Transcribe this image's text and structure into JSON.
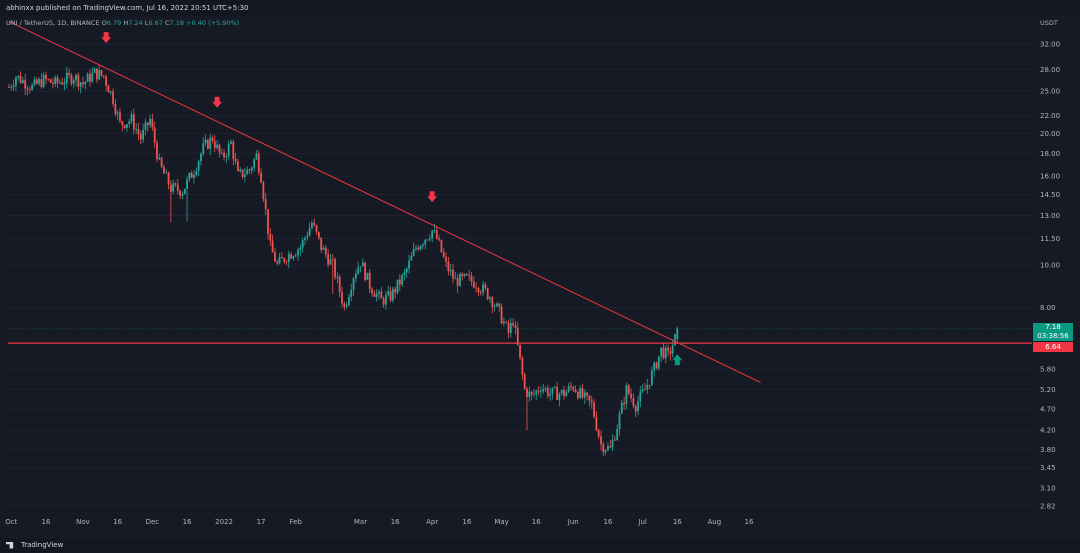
{
  "header": {
    "published_text": "abhinxx published on TradingView.com, Jul 16, 2022 20:51 UTC+5:30"
  },
  "legend": {
    "symbol": "UNI / TetherUS, 1D, BINANCE",
    "open_label": "O",
    "open": "6.79",
    "high_label": "H",
    "high": "7.24",
    "low_label": "L",
    "low": "6.67",
    "close_label": "C",
    "close": "7.18",
    "change": "+0.40 (+5.90%)"
  },
  "price_axis": {
    "unit": "USDT",
    "ticks": [
      "32.00",
      "28.00",
      "25.00",
      "22.00",
      "20.00",
      "18.00",
      "16.00",
      "14.50",
      "13.00",
      "11.50",
      "10.00",
      "8.00",
      "5.80",
      "5.20",
      "4.70",
      "4.20",
      "3.80",
      "3.45",
      "3.10",
      "2.82"
    ]
  },
  "time_axis": {
    "ticks": [
      "Oct",
      "16",
      "Nov",
      "16",
      "Dec",
      "16",
      "2022",
      "17",
      "Feb",
      "Mar",
      "16",
      "Apr",
      "16",
      "May",
      "16",
      "Jun",
      "16",
      "Jul",
      "16",
      "Aug",
      "16"
    ]
  },
  "price_tags": {
    "last_price": "7.18",
    "countdown": "03:38:56",
    "level": "6.64"
  },
  "footer": {
    "brand": "TradingView"
  },
  "colors": {
    "background": "#161a25",
    "up": "#26a69a",
    "down": "#ef5350",
    "trendline": "#f23645",
    "arrow_down": "#f23645",
    "arrow_up": "#089981"
  },
  "chart_data": {
    "type": "candlestick",
    "symbol": "UNI / TetherUS",
    "interval": "1D",
    "exchange": "BINANCE",
    "y_scale": "log",
    "ylim": [
      2.7,
      36
    ],
    "last": {
      "open": 6.79,
      "high": 7.24,
      "low": 6.67,
      "close": 7.18
    },
    "horizontal_level": 6.64,
    "anchors": [
      {
        "date": "Sep 30",
        "price": 25.5
      },
      {
        "date": "Oct 3",
        "price": 27
      },
      {
        "date": "Oct 10",
        "price": 25.5
      },
      {
        "date": "Oct 15",
        "price": 26.5
      },
      {
        "date": "Oct 20",
        "price": 26
      },
      {
        "date": "Oct 28",
        "price": 27
      },
      {
        "date": "Nov 1",
        "price": 26
      },
      {
        "date": "Nov 6",
        "price": 27.5
      },
      {
        "date": "Nov 10",
        "price": 27
      },
      {
        "date": "Nov 14",
        "price": 24
      },
      {
        "date": "Nov 17",
        "price": 21
      },
      {
        "date": "Nov 22",
        "price": 21.5
      },
      {
        "date": "Nov 26",
        "price": 19.5
      },
      {
        "date": "Nov 30",
        "price": 21.5
      },
      {
        "date": "Dec 4",
        "price": 17
      },
      {
        "date": "Dec 9",
        "price": 15
      },
      {
        "date": "Dec 14",
        "price": 14.8
      },
      {
        "date": "Dec 19",
        "price": 16.5
      },
      {
        "date": "Dec 23",
        "price": 18.5
      },
      {
        "date": "Dec 27",
        "price": 19.5
      },
      {
        "date": "Dec 31",
        "price": 17.5
      },
      {
        "date": "Jan 4",
        "price": 19
      },
      {
        "date": "Jan 7",
        "price": 16
      },
      {
        "date": "Jan 12",
        "price": 16.5
      },
      {
        "date": "Jan 15",
        "price": 17.8
      },
      {
        "date": "Jan 17",
        "price": 16
      },
      {
        "date": "Jan 21",
        "price": 11
      },
      {
        "date": "Jan 24",
        "price": 10
      },
      {
        "date": "Jan 28",
        "price": 10.5
      },
      {
        "date": "Feb 3",
        "price": 11
      },
      {
        "date": "Feb 8",
        "price": 12.5
      },
      {
        "date": "Feb 12",
        "price": 11
      },
      {
        "date": "Feb 17",
        "price": 10
      },
      {
        "date": "Feb 22",
        "price": 8
      },
      {
        "date": "Feb 26",
        "price": 9.5
      },
      {
        "date": "Mar 1",
        "price": 10.2
      },
      {
        "date": "Mar 5",
        "price": 9
      },
      {
        "date": "Mar 10",
        "price": 8.3
      },
      {
        "date": "Mar 14",
        "price": 8.5
      },
      {
        "date": "Mar 20",
        "price": 9.5
      },
      {
        "date": "Mar 25",
        "price": 11
      },
      {
        "date": "Apr 1",
        "price": 12
      },
      {
        "date": "Apr 3",
        "price": 11.5
      },
      {
        "date": "Apr 7",
        "price": 10
      },
      {
        "date": "Apr 11",
        "price": 9.2
      },
      {
        "date": "Apr 16",
        "price": 9.3
      },
      {
        "date": "Apr 20",
        "price": 9.1
      },
      {
        "date": "Apr 26",
        "price": 8.5
      },
      {
        "date": "Apr 30",
        "price": 7.8
      },
      {
        "date": "May 4",
        "price": 7
      },
      {
        "date": "May 6",
        "price": 7.5
      },
      {
        "date": "May 8",
        "price": 6.5
      },
      {
        "date": "May 11",
        "price": 5.2
      },
      {
        "date": "May 14",
        "price": 5
      },
      {
        "date": "May 18",
        "price": 5.3
      },
      {
        "date": "May 22",
        "price": 5.1
      },
      {
        "date": "May 28",
        "price": 5.1
      },
      {
        "date": "Jun 1",
        "price": 5.3
      },
      {
        "date": "Jun 5",
        "price": 5
      },
      {
        "date": "Jun 9",
        "price": 4.8
      },
      {
        "date": "Jun 13",
        "price": 3.9
      },
      {
        "date": "Jun 17",
        "price": 3.8
      },
      {
        "date": "Jun 20",
        "price": 4.3
      },
      {
        "date": "Jun 24",
        "price": 5.2
      },
      {
        "date": "Jun 28",
        "price": 4.8
      },
      {
        "date": "Jul 2",
        "price": 5.2
      },
      {
        "date": "Jul 6",
        "price": 5.8
      },
      {
        "date": "Jul 9",
        "price": 6.4
      },
      {
        "date": "Jul 12",
        "price": 6.2
      },
      {
        "date": "Jul 15",
        "price": 6.8
      },
      {
        "date": "Jul 16",
        "price": 7.18
      }
    ],
    "annotations": [
      {
        "type": "trendline",
        "from": {
          "date": "Sep 30",
          "price": 36
        },
        "to": {
          "date": "Aug 21",
          "price": 5.4
        }
      },
      {
        "type": "arrow-down",
        "date": "Nov 11",
        "price": 33
      },
      {
        "type": "arrow-down",
        "date": "Dec 29",
        "price": 23.5
      },
      {
        "type": "arrow-down",
        "date": "Apr 1",
        "price": 14.3
      },
      {
        "type": "arrow-up",
        "date": "Jul 16",
        "price": 6.1
      }
    ]
  }
}
